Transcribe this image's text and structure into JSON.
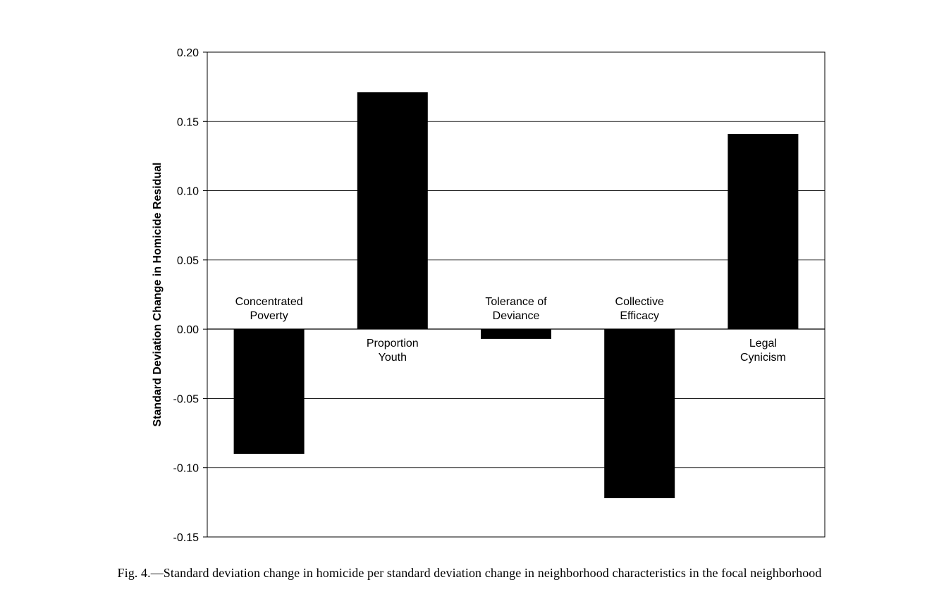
{
  "chart_data": {
    "type": "bar",
    "categories": [
      [
        "Concentrated",
        "Poverty"
      ],
      [
        "Proportion",
        "Youth"
      ],
      [
        "Tolerance of",
        "Deviance"
      ],
      [
        "Collective",
        "Efficacy"
      ],
      [
        "Legal",
        "Cynicism"
      ]
    ],
    "values": [
      -0.09,
      0.171,
      -0.007,
      -0.122,
      0.141
    ],
    "ylabel": "Standard Deviation Change in Homicide Residual",
    "ylim": [
      -0.15,
      0.2
    ],
    "yticks": [
      "0.20",
      "0.15",
      "0.10",
      "0.05",
      "0.00",
      "-0.05",
      "-0.10",
      "-0.15"
    ],
    "grid": true,
    "bar_color": "#000000"
  },
  "caption": "Fig. 4.—Standard deviation change in homicide per standard deviation change in neighborhood characteristics in the focal neighborhood"
}
